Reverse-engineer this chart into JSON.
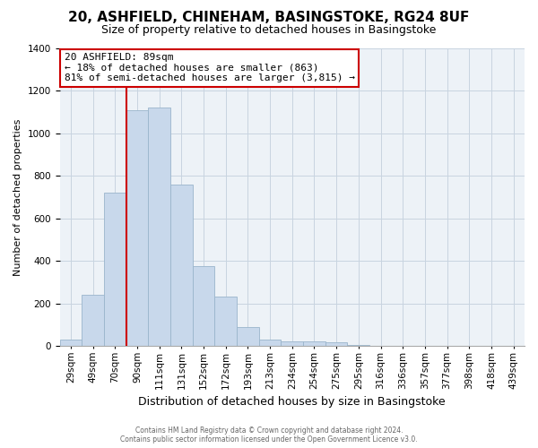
{
  "title": "20, ASHFIELD, CHINEHAM, BASINGSTOKE, RG24 8UF",
  "subtitle": "Size of property relative to detached houses in Basingstoke",
  "xlabel": "Distribution of detached houses by size in Basingstoke",
  "ylabel": "Number of detached properties",
  "bar_labels": [
    "29sqm",
    "49sqm",
    "70sqm",
    "90sqm",
    "111sqm",
    "131sqm",
    "152sqm",
    "172sqm",
    "193sqm",
    "213sqm",
    "234sqm",
    "254sqm",
    "275sqm",
    "295sqm",
    "316sqm",
    "336sqm",
    "357sqm",
    "377sqm",
    "398sqm",
    "418sqm",
    "439sqm"
  ],
  "bar_values": [
    30,
    240,
    720,
    1110,
    1120,
    760,
    375,
    230,
    90,
    30,
    20,
    20,
    15,
    5,
    0,
    0,
    0,
    0,
    0,
    0,
    0
  ],
  "bar_color": "#c8d8eb",
  "bar_edge_color": "#9ab5cc",
  "subject_line_index": 3,
  "subject_line_color": "#cc0000",
  "annotation_title": "20 ASHFIELD: 89sqm",
  "annotation_line1": "← 18% of detached houses are smaller (863)",
  "annotation_line2": "81% of semi-detached houses are larger (3,815) →",
  "annotation_box_facecolor": "#ffffff",
  "annotation_box_edgecolor": "#cc0000",
  "ylim": [
    0,
    1400
  ],
  "yticks": [
    0,
    200,
    400,
    600,
    800,
    1000,
    1200,
    1400
  ],
  "footer_line1": "Contains HM Land Registry data © Crown copyright and database right 2024.",
  "footer_line2": "Contains public sector information licensed under the Open Government Licence v3.0.",
  "title_fontsize": 11,
  "subtitle_fontsize": 9,
  "axis_label_fontsize": 9,
  "ylabel_fontsize": 8,
  "tick_fontsize": 7.5,
  "grid_color": "#c8d4e0",
  "background_color": "#edf2f7"
}
